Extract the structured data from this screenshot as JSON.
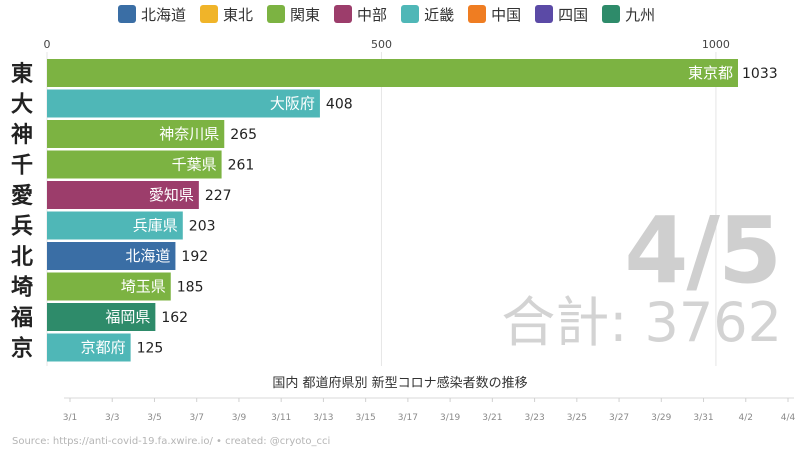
{
  "legend": [
    {
      "label": "北海道",
      "color": "#3a6ea5"
    },
    {
      "label": "東北",
      "color": "#f0b429"
    },
    {
      "label": "関東",
      "color": "#7cb342"
    },
    {
      "label": "中部",
      "color": "#9c3d6b"
    },
    {
      "label": "近畿",
      "color": "#4fb7b7"
    },
    {
      "label": "中国",
      "color": "#ef7d22"
    },
    {
      "label": "四国",
      "color": "#5b4aa6"
    },
    {
      "label": "九州",
      "color": "#2e8b6a"
    }
  ],
  "date_label": "4/5",
  "total_text": "合計: 3762",
  "title": "国内 都道府県別 新型コロナ感染者数の推移",
  "source": "Source: https://anti-covid-19.fa.xwire.io/ • created: @cryoto_cci",
  "chart_data": {
    "type": "bar",
    "orientation": "horizontal",
    "xlim": [
      0,
      1033
    ],
    "xticks": [
      0,
      500,
      1000
    ],
    "grid": true,
    "bars": [
      {
        "initial": "東",
        "name": "東京都",
        "value": 1033,
        "region": "関東"
      },
      {
        "initial": "大",
        "name": "大阪府",
        "value": 408,
        "region": "近畿"
      },
      {
        "initial": "神",
        "name": "神奈川県",
        "value": 265,
        "region": "関東"
      },
      {
        "initial": "千",
        "name": "千葉県",
        "value": 261,
        "region": "関東"
      },
      {
        "initial": "愛",
        "name": "愛知県",
        "value": 227,
        "region": "中部"
      },
      {
        "initial": "兵",
        "name": "兵庫県",
        "value": 203,
        "region": "近畿"
      },
      {
        "initial": "北",
        "name": "北海道",
        "value": 192,
        "region": "北海道"
      },
      {
        "initial": "埼",
        "name": "埼玉県",
        "value": 185,
        "region": "関東"
      },
      {
        "initial": "福",
        "name": "福岡県",
        "value": 162,
        "region": "九州"
      },
      {
        "initial": "京",
        "name": "京都府",
        "value": 125,
        "region": "近畿"
      }
    ],
    "timeline": {
      "labels": [
        "3/1",
        "3/3",
        "3/5",
        "3/7",
        "3/9",
        "3/11",
        "3/13",
        "3/15",
        "3/17",
        "3/19",
        "3/21",
        "3/23",
        "3/25",
        "3/27",
        "3/29",
        "3/31",
        "4/2",
        "4/4"
      ],
      "current": "4/5"
    }
  }
}
